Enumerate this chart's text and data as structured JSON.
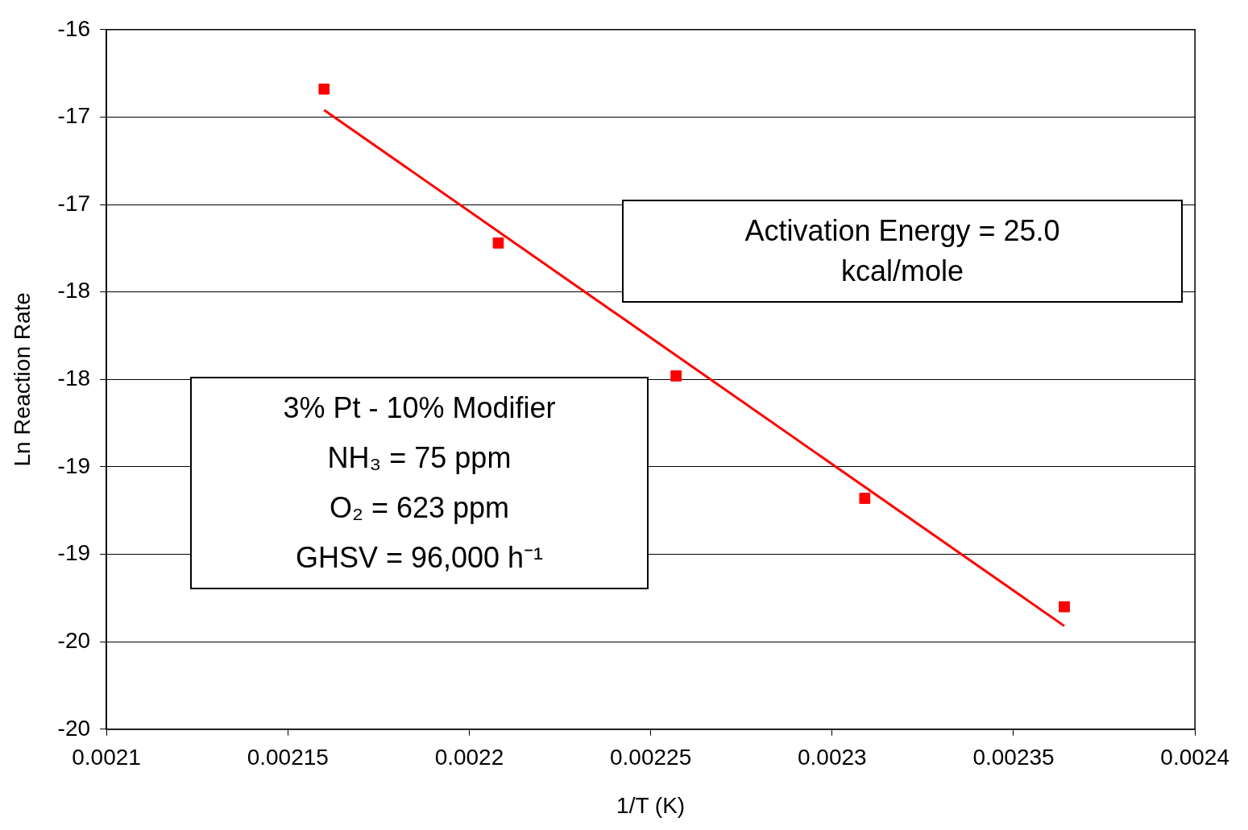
{
  "chart_data": {
    "type": "scatter",
    "xlabel": "1/T (K)",
    "ylabel": "Ln Reaction Rate",
    "xlim": [
      0.0021,
      0.0024
    ],
    "xticks": [
      0.0021,
      0.00215,
      0.0022,
      0.00225,
      0.0023,
      0.00235,
      0.0024
    ],
    "ylim": [
      -20,
      -16
    ],
    "yticks": [
      -16,
      {
        "value": -16.5,
        "label": "-17"
      },
      -17,
      {
        "value": -17.5,
        "label": "-18"
      },
      -18,
      {
        "value": -18.5,
        "label": "-19"
      },
      -19,
      {
        "value": -19.5,
        "label": "-20"
      },
      -20
    ],
    "grid": "y",
    "legend": false,
    "marker": "square",
    "series": [
      {
        "color": "#ff0000",
        "x": [
          0.00216,
          0.002208,
          0.002257,
          0.002309,
          0.002364
        ],
        "values": [
          -16.34,
          -17.22,
          -17.98,
          -18.68,
          -19.3
        ]
      },
      {
        "type": "line",
        "color": "#ff0000",
        "marker": "none",
        "line_style": "solid",
        "x": [
          0.00216,
          0.002364
        ],
        "values": [
          -16.46,
          -19.41
        ]
      }
    ],
    "annotations": [
      "Activation Energy = 25.0\nkcal/mole",
      "3% Pt - 10% Modifier\nNH₃ = 75 ppm\nO₂ = 623 ppm\nGHSV = 96,000 h⁻¹"
    ]
  }
}
